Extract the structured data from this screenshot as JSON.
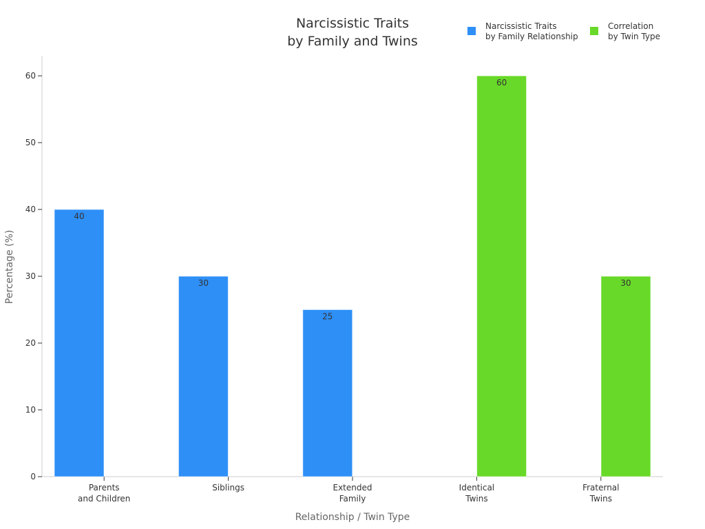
{
  "chart_data": {
    "type": "bar",
    "title": [
      "Narcissistic Traits",
      "by Family and Twins"
    ],
    "xlabel": "Relationship / Twin Type",
    "ylabel": "Percentage (%)",
    "ylim": [
      0,
      63
    ],
    "yticks": [
      0,
      10,
      20,
      30,
      40,
      50,
      60
    ],
    "grid": false,
    "legend_position": "top-right",
    "categories": [
      [
        "Parents",
        "and Children"
      ],
      [
        "Siblings"
      ],
      [
        "Extended",
        "Family"
      ],
      [
        "Identical",
        "Twins"
      ],
      [
        "Fraternal",
        "Twins"
      ]
    ],
    "series": [
      {
        "name": [
          "Narcissistic Traits",
          "by Family Relationship"
        ],
        "color": "#2e8ff7",
        "values": [
          40,
          30,
          25,
          null,
          null
        ]
      },
      {
        "name": [
          "Correlation",
          "by Twin Type"
        ],
        "color": "#68d928",
        "values": [
          null,
          null,
          null,
          60,
          30
        ]
      }
    ]
  }
}
